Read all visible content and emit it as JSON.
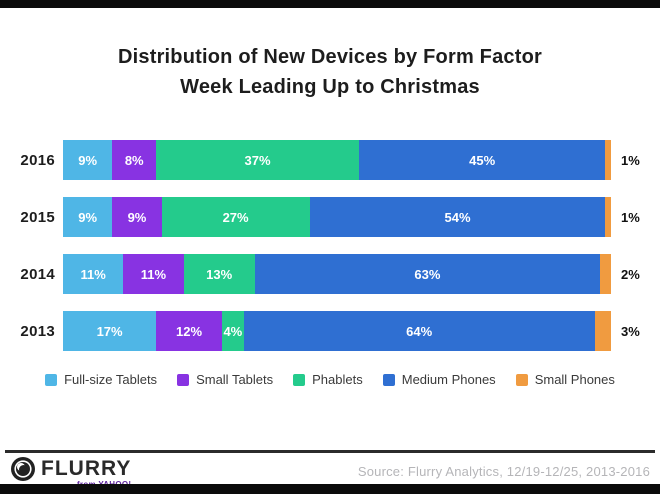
{
  "title": {
    "line1": "Distribution of New Devices by Form Factor",
    "line2": "Week Leading Up to Christmas"
  },
  "chart_data": {
    "type": "bar",
    "stacked": true,
    "orientation": "horizontal",
    "categories": [
      "2016",
      "2015",
      "2014",
      "2013"
    ],
    "series": [
      {
        "name": "Full-size Tablets",
        "color": "#4fb6e6",
        "values": [
          9,
          9,
          11,
          17
        ]
      },
      {
        "name": "Small Tablets",
        "color": "#8833e2",
        "values": [
          8,
          9,
          11,
          12
        ]
      },
      {
        "name": "Phablets",
        "color": "#24cb8c",
        "values": [
          37,
          27,
          13,
          4
        ]
      },
      {
        "name": "Medium Phones",
        "color": "#2f6fd2",
        "values": [
          45,
          54,
          63,
          64
        ]
      },
      {
        "name": "Small Phones",
        "color": "#f09b40",
        "values": [
          1,
          1,
          2,
          3
        ]
      }
    ],
    "value_suffix": "%",
    "xlim": [
      0,
      100
    ],
    "legend_position": "bottom",
    "outside_labeled_series": "Small Phones"
  },
  "footer": {
    "logo_text": "FLURRY",
    "logo_sub": "from YAHOO!",
    "source": "Source: Flurry Analytics, 12/19-12/25, 2013-2016"
  },
  "colors": {
    "top_bar": "#0b0b0b",
    "bottom_bar": "#0b0b0b",
    "title_text": "#1d1d1d",
    "inside_label": "#ffffff",
    "outside_label": "#111111",
    "source_text": "#b5b5b8",
    "yahoo_purple": "#5f259f"
  }
}
